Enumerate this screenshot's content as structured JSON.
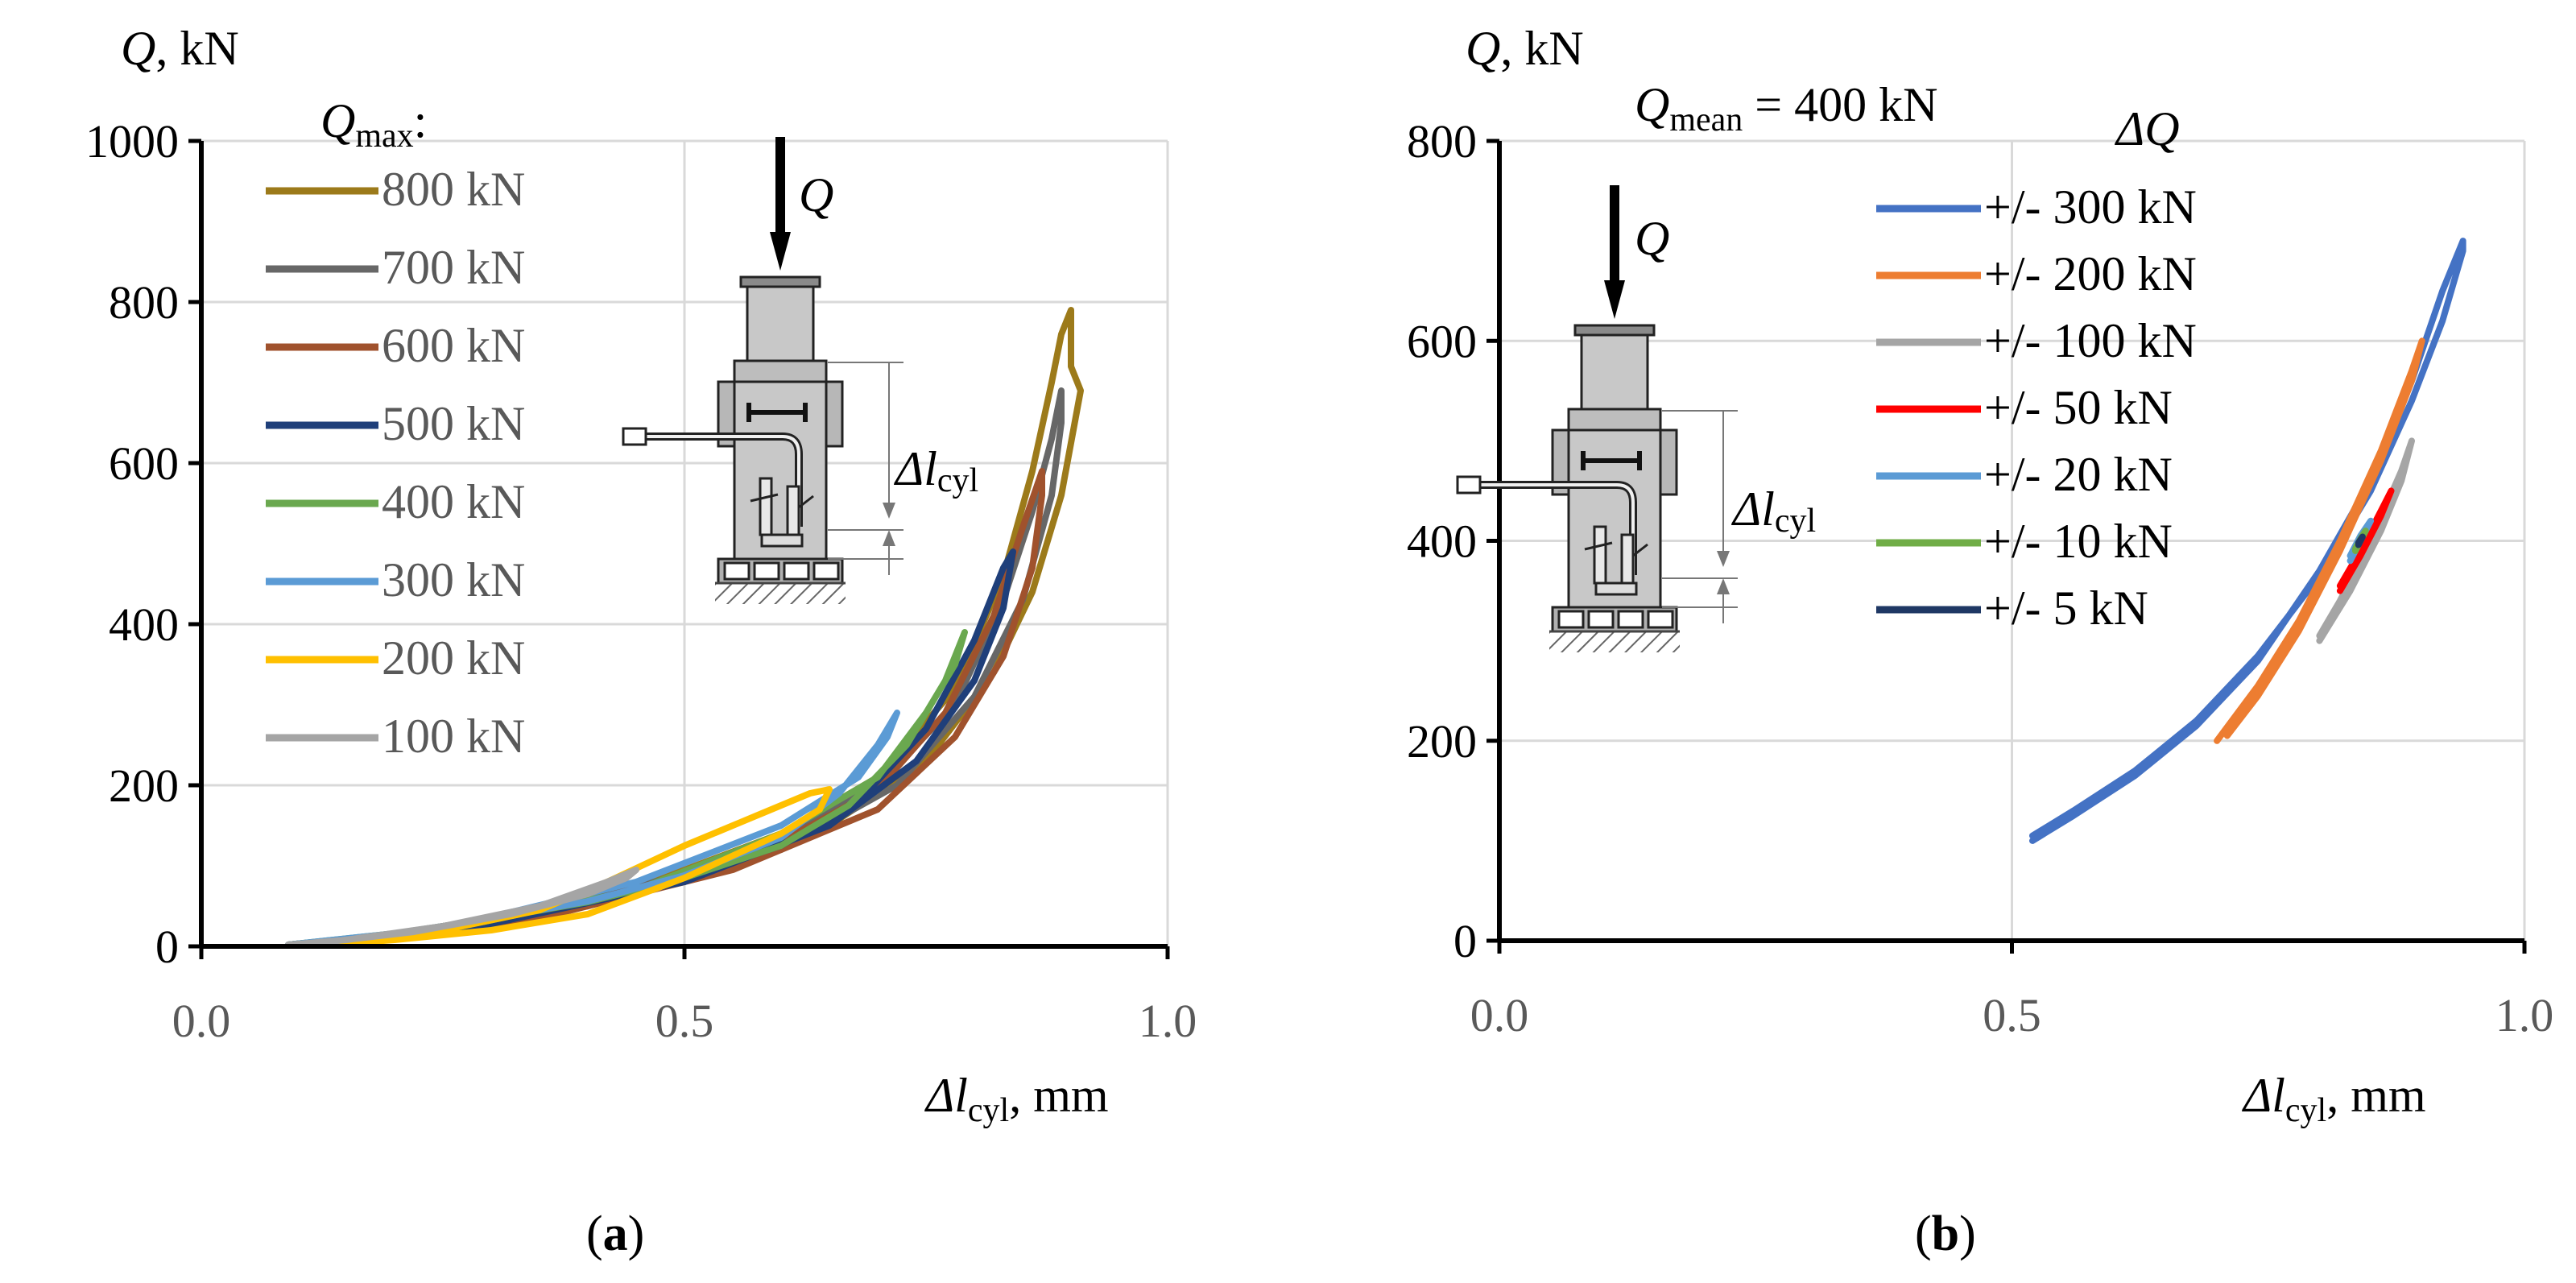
{
  "chart_data": [
    {
      "type": "line",
      "panel": "a",
      "caption_open": "(",
      "caption_letter": "a",
      "caption_close": ")",
      "ylabel_var": "Q",
      "ylabel_unit": ", kN",
      "xlabel_delta": "Δ",
      "xlabel_var": "l",
      "xlabel_sub": "cyl",
      "xlabel_unit": ", mm",
      "xlim": [
        0.0,
        1.0
      ],
      "ylim": [
        0,
        1000
      ],
      "x_ticks": [
        "0.0",
        "0.5",
        "1.0"
      ],
      "y_ticks": [
        "0",
        "200",
        "400",
        "600",
        "800",
        "1000"
      ],
      "grid": true,
      "legend_title_main": "Q",
      "legend_title_sub": "max",
      "legend_title_colon": ":",
      "legend_position": "upper-left",
      "inset_load_label": "Q",
      "inset_delta_label": "Δl",
      "inset_delta_sub": "cyl",
      "series": [
        {
          "name": "800 kN",
          "color": "#9C7A1A",
          "x": [
            0.09,
            0.2,
            0.3,
            0.4,
            0.5,
            0.6,
            0.7,
            0.78,
            0.83,
            0.86,
            0.88,
            0.89,
            0.9,
            0.9,
            0.91,
            0.89,
            0.86,
            0.82,
            0.75,
            0.65,
            0.5,
            0.3,
            0.1
          ],
          "y": [
            2,
            15,
            35,
            60,
            95,
            140,
            210,
            320,
            460,
            590,
            700,
            760,
            790,
            720,
            690,
            560,
            440,
            340,
            230,
            150,
            80,
            25,
            3
          ]
        },
        {
          "name": "700 kN",
          "color": "#676767",
          "x": [
            0.09,
            0.2,
            0.3,
            0.4,
            0.5,
            0.6,
            0.7,
            0.78,
            0.83,
            0.86,
            0.88,
            0.89,
            0.89,
            0.88,
            0.85,
            0.8,
            0.72,
            0.6,
            0.4,
            0.2,
            0.1
          ],
          "y": [
            2,
            15,
            35,
            58,
            90,
            135,
            200,
            300,
            430,
            540,
            630,
            690,
            650,
            560,
            430,
            310,
            200,
            120,
            50,
            12,
            3
          ]
        },
        {
          "name": "600 kN",
          "color": "#A0522D",
          "x": [
            0.09,
            0.2,
            0.3,
            0.4,
            0.5,
            0.6,
            0.7,
            0.77,
            0.82,
            0.85,
            0.87,
            0.87,
            0.86,
            0.83,
            0.78,
            0.7,
            0.55,
            0.35,
            0.15
          ],
          "y": [
            2,
            15,
            34,
            56,
            88,
            130,
            195,
            290,
            410,
            520,
            590,
            560,
            470,
            360,
            260,
            170,
            95,
            35,
            6
          ]
        },
        {
          "name": "500 kN",
          "color": "#1F3F7A",
          "x": [
            0.09,
            0.2,
            0.3,
            0.4,
            0.5,
            0.6,
            0.68,
            0.75,
            0.8,
            0.83,
            0.84,
            0.83,
            0.8,
            0.74,
            0.65,
            0.5,
            0.3,
            0.12
          ],
          "y": [
            2,
            15,
            33,
            55,
            85,
            125,
            180,
            270,
            380,
            470,
            490,
            420,
            330,
            230,
            150,
            80,
            28,
            4
          ]
        },
        {
          "name": "400 kN",
          "color": "#6AA84F",
          "x": [
            0.09,
            0.2,
            0.3,
            0.4,
            0.5,
            0.6,
            0.67,
            0.73,
            0.77,
            0.79,
            0.78,
            0.75,
            0.7,
            0.6,
            0.45,
            0.25,
            0.1
          ],
          "y": [
            2,
            16,
            34,
            55,
            85,
            125,
            175,
            250,
            330,
            390,
            350,
            290,
            210,
            140,
            70,
            20,
            3
          ]
        },
        {
          "name": "300 kN",
          "color": "#5B9BD5",
          "x": [
            0.09,
            0.2,
            0.3,
            0.4,
            0.5,
            0.6,
            0.66,
            0.7,
            0.72,
            0.71,
            0.68,
            0.6,
            0.45,
            0.25,
            0.1
          ],
          "y": [
            2,
            16,
            34,
            56,
            88,
            135,
            190,
            250,
            290,
            260,
            210,
            150,
            80,
            22,
            3
          ]
        },
        {
          "name": "200 kN",
          "color": "#FFC000",
          "x": [
            0.17,
            0.25,
            0.35,
            0.42,
            0.5,
            0.58,
            0.63,
            0.65,
            0.64,
            0.6,
            0.5,
            0.4,
            0.3,
            0.2,
            0.13
          ],
          "y": [
            5,
            20,
            45,
            80,
            125,
            165,
            190,
            195,
            170,
            140,
            85,
            40,
            20,
            8,
            2
          ]
        },
        {
          "name": "100 kN",
          "color": "#A5A5A5",
          "x": [
            0.09,
            0.15,
            0.25,
            0.35,
            0.42,
            0.45,
            0.44,
            0.4,
            0.32,
            0.22,
            0.12
          ],
          "y": [
            2,
            8,
            25,
            50,
            80,
            95,
            85,
            65,
            40,
            18,
            4
          ]
        }
      ]
    },
    {
      "type": "line",
      "panel": "b",
      "caption_open": "(",
      "caption_letter": "b",
      "caption_close": ")",
      "ylabel_var": "Q",
      "ylabel_unit": ", kN",
      "xlabel_delta": "Δ",
      "xlabel_var": "l",
      "xlabel_sub": "cyl",
      "xlabel_unit": ", mm",
      "xlim": [
        0.0,
        1.0
      ],
      "ylim": [
        0,
        800
      ],
      "x_ticks": [
        "0.0",
        "0.5",
        "1.0"
      ],
      "y_ticks": [
        "0",
        "200",
        "400",
        "600",
        "800"
      ],
      "grid": true,
      "annotation_main": "Q",
      "annotation_sub": "mean",
      "annotation_rest": " = 400 kN",
      "legend_title": "ΔQ",
      "legend_position": "upper-right",
      "inset_load_label": "Q",
      "inset_delta_label": "Δl",
      "inset_delta_sub": "cyl",
      "series": [
        {
          "name": "+/- 300 kN",
          "color": "#4472C4",
          "x": [
            0.52,
            0.56,
            0.62,
            0.68,
            0.74,
            0.8,
            0.85,
            0.89,
            0.92,
            0.94,
            0.94,
            0.92,
            0.89,
            0.85,
            0.8,
            0.74,
            0.68,
            0.62,
            0.56,
            0.52
          ],
          "y": [
            100,
            125,
            165,
            215,
            280,
            370,
            460,
            560,
            650,
            700,
            690,
            620,
            540,
            450,
            365,
            285,
            220,
            170,
            130,
            105
          ]
        },
        {
          "name": "+/- 200 kN",
          "color": "#ED7D31",
          "x": [
            0.7,
            0.74,
            0.78,
            0.82,
            0.86,
            0.89,
            0.9,
            0.89,
            0.86,
            0.82,
            0.78,
            0.74,
            0.71
          ],
          "y": [
            200,
            255,
            320,
            400,
            490,
            570,
            600,
            560,
            480,
            390,
            310,
            245,
            205
          ]
        },
        {
          "name": "+/- 100 kN",
          "color": "#A5A5A5",
          "x": [
            0.8,
            0.83,
            0.86,
            0.88,
            0.89,
            0.88,
            0.85,
            0.82,
            0.8
          ],
          "y": [
            300,
            350,
            410,
            460,
            500,
            470,
            400,
            340,
            305
          ]
        },
        {
          "name": "+/- 50 kN",
          "color": "#FF0000",
          "x": [
            0.82,
            0.84,
            0.86,
            0.87,
            0.86,
            0.84,
            0.82
          ],
          "y": [
            350,
            385,
            425,
            450,
            430,
            390,
            355
          ]
        },
        {
          "name": "+/- 20 kN",
          "color": "#5B9BD5",
          "x": [
            0.83,
            0.84,
            0.85,
            0.84,
            0.83
          ],
          "y": [
            380,
            400,
            420,
            405,
            385
          ]
        },
        {
          "name": "+/- 10 kN",
          "color": "#70AD47",
          "x": [
            0.835,
            0.84,
            0.845,
            0.84,
            0.835
          ],
          "y": [
            390,
            400,
            410,
            402,
            392
          ]
        },
        {
          "name": "+/- 5 kN",
          "color": "#1F3864",
          "x": [
            0.838,
            0.842,
            0.838
          ],
          "y": [
            396,
            404,
            398
          ]
        }
      ]
    }
  ]
}
